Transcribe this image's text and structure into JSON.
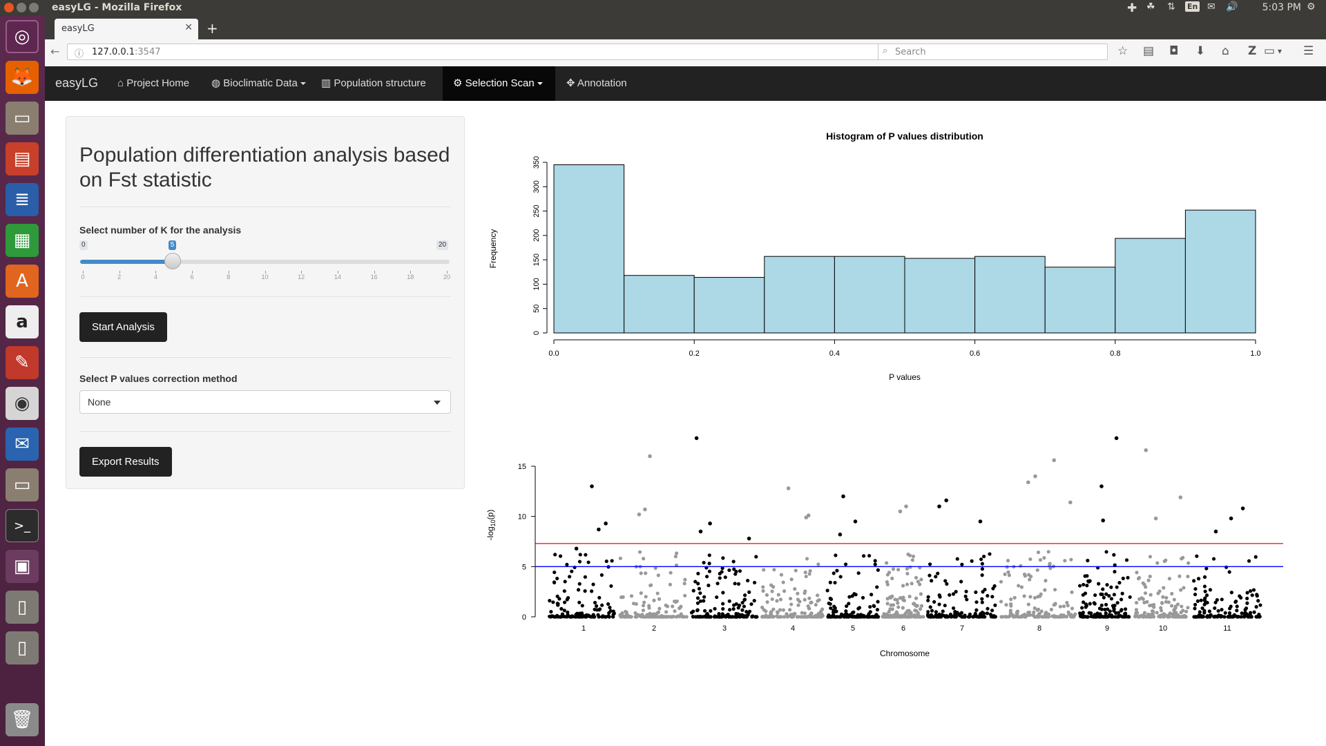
{
  "os": {
    "window_title": "easyLG - Mozilla Firefox",
    "keyboard_layout": "En",
    "clock": "5:03 PM",
    "launcher_items": [
      "ubuntu-dash-icon",
      "firefox-icon",
      "files-icon",
      "impress-icon",
      "writer-icon",
      "calc-icon",
      "software-center-icon",
      "amazon-icon",
      "system-settings-icon",
      "screenshot-icon",
      "thunderbird-icon",
      "files-icon",
      "terminal-icon",
      "workspace-switcher-icon",
      "usb-drive-icon",
      "usb-drive-icon",
      "trash-icon"
    ]
  },
  "browser": {
    "tab_title": "easyLG",
    "url_host": "127.0.0.1",
    "url_port": ":3547",
    "search_placeholder": "Search"
  },
  "app": {
    "brand": "easyLG",
    "nav": [
      {
        "label": "Project Home",
        "icon": "home-icon"
      },
      {
        "label": "Bioclimatic Data",
        "icon": "globe-icon",
        "dropdown": true
      },
      {
        "label": "Population structure",
        "icon": "bar-chart-icon"
      },
      {
        "label": "Selection Scan",
        "icon": "gears-icon",
        "dropdown": true,
        "active": true
      },
      {
        "label": "Annotation",
        "icon": "puzzle-icon"
      }
    ]
  },
  "panel": {
    "title": "Population differentiation analysis based on Fst statistic",
    "k_label": "Select number of K for the analysis",
    "k_min": "0",
    "k_max": "20",
    "k_value": "5",
    "k_ticks": [
      "0",
      "2",
      "4",
      "6",
      "8",
      "10",
      "12",
      "14",
      "16",
      "18",
      "20"
    ],
    "start_button": "Start Analysis",
    "correction_label": "Select P values correction method",
    "correction_value": "None",
    "export_button": "Export Results"
  },
  "colors": {
    "bar_fill": "#add8e6",
    "red_line": "#ff0000",
    "blue_line": "#0000ff",
    "dark_points": "#000000",
    "light_points": "#999999"
  },
  "chart_data": [
    {
      "type": "bar",
      "title": "Histogram of P values distribution",
      "xlabel": "P values",
      "ylabel": "Frequency",
      "bin_edges": [
        0.0,
        0.1,
        0.2,
        0.3,
        0.4,
        0.5,
        0.6,
        0.7,
        0.8,
        0.9,
        1.0
      ],
      "values": [
        345,
        118,
        114,
        157,
        157,
        153,
        157,
        135,
        194,
        252
      ],
      "x_ticks": [
        "0.0",
        "0.2",
        "0.4",
        "0.6",
        "0.8",
        "1.0"
      ],
      "y_ticks": [
        "0",
        "50",
        "100",
        "150",
        "200",
        "250",
        "300",
        "350"
      ],
      "xlim": [
        0,
        1
      ],
      "ylim": [
        0,
        350
      ]
    },
    {
      "type": "scatter",
      "xlabel": "Chromosome",
      "ylabel": "-log10(p)",
      "categories": [
        "1",
        "2",
        "3",
        "4",
        "5",
        "6",
        "7",
        "8",
        "9",
        "10",
        "11"
      ],
      "y_ticks": [
        "0",
        "5",
        "10",
        "15"
      ],
      "ylim": [
        0,
        18
      ],
      "thresholds": [
        {
          "color": "red",
          "y": 7.3
        },
        {
          "color": "blue",
          "y": 5.0
        }
      ],
      "highlighted_points": [
        {
          "chr": "1",
          "y": 13.0
        },
        {
          "chr": "1",
          "y": 9.3
        },
        {
          "chr": "1",
          "y": 8.7
        },
        {
          "chr": "1",
          "y": 6.8
        },
        {
          "chr": "2",
          "y": 16.0
        },
        {
          "chr": "2",
          "y": 10.7
        },
        {
          "chr": "2",
          "y": 10.2
        },
        {
          "chr": "3",
          "y": 17.8
        },
        {
          "chr": "3",
          "y": 9.3
        },
        {
          "chr": "3",
          "y": 8.5
        },
        {
          "chr": "3",
          "y": 7.8
        },
        {
          "chr": "4",
          "y": 12.8
        },
        {
          "chr": "4",
          "y": 10.1
        },
        {
          "chr": "4",
          "y": 9.9
        },
        {
          "chr": "5",
          "y": 12.0
        },
        {
          "chr": "5",
          "y": 9.5
        },
        {
          "chr": "5",
          "y": 8.2
        },
        {
          "chr": "6",
          "y": 11.0
        },
        {
          "chr": "6",
          "y": 10.5
        },
        {
          "chr": "7",
          "y": 11.6
        },
        {
          "chr": "7",
          "y": 11.0
        },
        {
          "chr": "7",
          "y": 9.5
        },
        {
          "chr": "8",
          "y": 15.6
        },
        {
          "chr": "8",
          "y": 14.0
        },
        {
          "chr": "8",
          "y": 13.4
        },
        {
          "chr": "8",
          "y": 11.4
        },
        {
          "chr": "9",
          "y": 17.8
        },
        {
          "chr": "9",
          "y": 13.0
        },
        {
          "chr": "9",
          "y": 9.6
        },
        {
          "chr": "10",
          "y": 16.6
        },
        {
          "chr": "10",
          "y": 11.9
        },
        {
          "chr": "10",
          "y": 9.8
        },
        {
          "chr": "11",
          "y": 10.8
        },
        {
          "chr": "11",
          "y": 9.8
        },
        {
          "chr": "11",
          "y": 8.5
        }
      ]
    }
  ]
}
